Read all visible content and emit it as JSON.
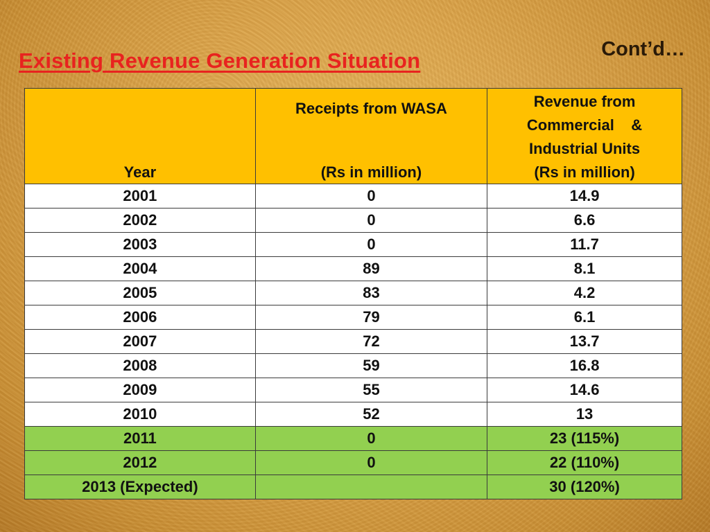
{
  "header": {
    "title": "Existing Revenue Generation Situation",
    "contd": "Cont’d…"
  },
  "table": {
    "headers": {
      "year": "Year",
      "wasa_line1": "Receipts from WASA",
      "wasa_line2": "(Rs in million)",
      "rev_line1": "Revenue from",
      "rev_line2": "Commercial    &",
      "rev_line3": "Industrial Units",
      "rev_line4": "(Rs in million)"
    },
    "rows": [
      {
        "year": "2001",
        "wasa": "0",
        "rev": "14.9",
        "highlight": false
      },
      {
        "year": "2002",
        "wasa": "0",
        "rev": "6.6",
        "highlight": false
      },
      {
        "year": "2003",
        "wasa": "0",
        "rev": "11.7",
        "highlight": false
      },
      {
        "year": "2004",
        "wasa": "89",
        "rev": "8.1",
        "highlight": false
      },
      {
        "year": "2005",
        "wasa": "83",
        "rev": "4.2",
        "highlight": false
      },
      {
        "year": "2006",
        "wasa": "79",
        "rev": "6.1",
        "highlight": false
      },
      {
        "year": "2007",
        "wasa": "72",
        "rev": "13.7",
        "highlight": false
      },
      {
        "year": "2008",
        "wasa": "59",
        "rev": "16.8",
        "highlight": false
      },
      {
        "year": "2009",
        "wasa": "55",
        "rev": "14.6",
        "highlight": false
      },
      {
        "year": "2010",
        "wasa": "52",
        "rev": "13",
        "highlight": false
      },
      {
        "year": "2011",
        "wasa": "0",
        "rev": "23 (115%)",
        "highlight": true
      },
      {
        "year": "2012",
        "wasa": "0",
        "rev": "22 (110%)",
        "highlight": true
      },
      {
        "year": "2013 (Expected)",
        "wasa": "",
        "rev": "30 (120%)",
        "highlight": true
      }
    ]
  },
  "colors": {
    "title": "#e8231f",
    "header_bg": "#ffc000",
    "highlight_bg": "#92d050",
    "row_bg": "#ffffff"
  }
}
